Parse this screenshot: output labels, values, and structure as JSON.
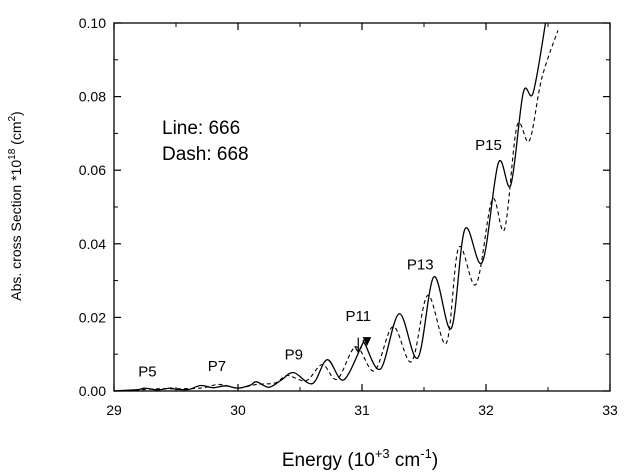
{
  "chart_data": {
    "type": "line",
    "xlabel": {
      "prefix": "Energy (10",
      "sup1": "+3",
      "mid": " cm",
      "sup2": "-1",
      "suffix": ")"
    },
    "ylabel": {
      "prefix": "Abs. cross Section *10",
      "sup1": "18",
      "mid": " (cm",
      "sup2": "2",
      "suffix": ")"
    },
    "xlim": [
      29,
      33
    ],
    "ylim": [
      0,
      0.1
    ],
    "x_ticks": [
      "29",
      "30",
      "31",
      "32",
      "33"
    ],
    "y_ticks": [
      "0.00",
      "0.02",
      "0.04",
      "0.06",
      "0.08",
      "0.10"
    ],
    "legend_note": [
      "Line: 666",
      "Dash: 668"
    ],
    "series": [
      {
        "name": "666",
        "style": "solid",
        "color": "#000000",
        "x": [
          29.0,
          29.1,
          29.2,
          29.25,
          29.35,
          29.45,
          29.5,
          29.6,
          29.7,
          29.8,
          29.9,
          30.0,
          30.1,
          30.15,
          30.25,
          30.35,
          30.45,
          30.6,
          30.72,
          30.85,
          31.0,
          31.02,
          31.15,
          31.3,
          31.45,
          31.58,
          31.72,
          31.83,
          31.97,
          32.1,
          32.2,
          32.3,
          32.38,
          32.48
        ],
        "y": [
          0.0,
          0.0002,
          0.0004,
          0.0008,
          0.0003,
          0.0008,
          0.0005,
          0.0004,
          0.0015,
          0.0009,
          0.0014,
          0.0008,
          0.0016,
          0.0025,
          0.001,
          0.003,
          0.005,
          0.002,
          0.0085,
          0.003,
          0.0125,
          0.013,
          0.006,
          0.021,
          0.009,
          0.031,
          0.017,
          0.044,
          0.035,
          0.062,
          0.056,
          0.081,
          0.081,
          0.1
        ]
      },
      {
        "name": "668",
        "style": "dashed",
        "color": "#000000",
        "x": [
          29.0,
          29.2,
          29.35,
          29.5,
          29.7,
          29.85,
          30.0,
          30.15,
          30.3,
          30.4,
          30.55,
          30.68,
          30.8,
          30.95,
          31.1,
          31.25,
          31.4,
          31.53,
          31.68,
          31.78,
          31.92,
          32.05,
          32.15,
          32.25,
          32.35,
          32.45,
          32.58
        ],
        "y": [
          0.0,
          0.0003,
          0.0006,
          0.0006,
          0.0008,
          0.0018,
          0.0008,
          0.0018,
          0.0022,
          0.0042,
          0.0028,
          0.0072,
          0.0032,
          0.012,
          0.0055,
          0.0175,
          0.008,
          0.026,
          0.013,
          0.039,
          0.029,
          0.052,
          0.044,
          0.072,
          0.068,
          0.085,
          0.098
        ]
      }
    ],
    "annotations": [
      {
        "text": "P5",
        "x": 29.27,
        "y": 0.004
      },
      {
        "text": "P7",
        "x": 29.83,
        "y": 0.0055
      },
      {
        "text": "P9",
        "x": 30.45,
        "y": 0.0085
      },
      {
        "text": "P11",
        "x": 30.97,
        "y": 0.019
      },
      {
        "text": "P13",
        "x": 31.47,
        "y": 0.033
      },
      {
        "text": "P15",
        "x": 32.02,
        "y": 0.0655
      }
    ],
    "arrows": [
      {
        "x": 30.97,
        "y_from": 0.0145,
        "y_to": 0.0105,
        "fill": "none"
      },
      {
        "x": 31.04,
        "y_from": 0.0145,
        "y_to": 0.0125,
        "fill": "solid"
      }
    ]
  }
}
